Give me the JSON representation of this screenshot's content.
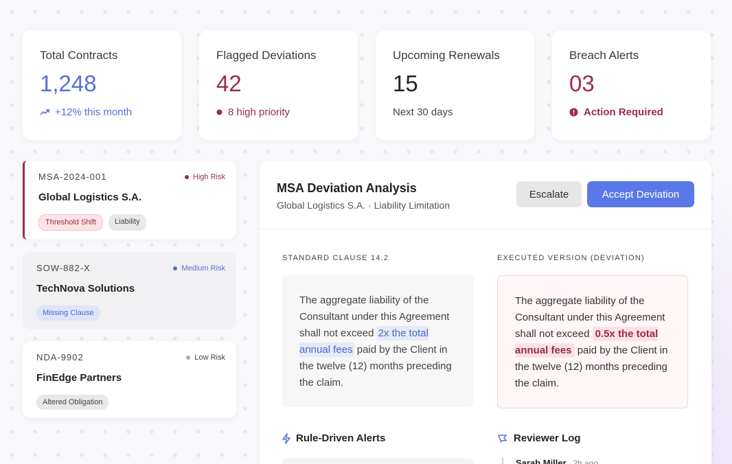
{
  "stats": [
    {
      "label": "Total Contracts",
      "value": "1,248",
      "note": "+12% this month"
    },
    {
      "label": "Flagged Deviations",
      "value": "42",
      "note": "8 high priority"
    },
    {
      "label": "Upcoming Renewals",
      "value": "15",
      "note": "Next 30 days"
    },
    {
      "label": "Breach Alerts",
      "value": "03",
      "note": "Action Required"
    }
  ],
  "contracts": [
    {
      "id": "MSA-2024-001",
      "risk": "High Risk",
      "name": "Global Logistics S.A.",
      "tags": [
        "Threshold Shift",
        "Liability"
      ]
    },
    {
      "id": "SOW-882-X",
      "risk": "Medium Risk",
      "name": "TechNova Solutions",
      "tags": [
        "Missing Clause"
      ]
    },
    {
      "id": "NDA-9902",
      "risk": "Low Risk",
      "name": "FinEdge Partners",
      "tags": [
        "Altered Obligation"
      ]
    }
  ],
  "detail": {
    "title": "MSA Deviation Analysis",
    "subtitle": "Global Logistics S.A. · Liability Limitation",
    "buttons": [
      "Escalate",
      "Accept Deviation"
    ],
    "standard": {
      "label": "STANDARD CLAUSE 14.2",
      "before": "The aggregate liability of the Consultant under this Agreement shall not exceed ",
      "highlight": "2x the total annual fees",
      "after": " paid by the Client in the twelve (12) months preceding the claim."
    },
    "executed": {
      "label": "EXECUTED VERSION (DEVIATION)",
      "before": "The aggregate liability of the Consultant under this Agreement shall not exceed ",
      "highlight": "0.5x the total annual fees",
      "after": " paid by the Client in the twelve (12) months preceding the claim."
    },
    "alerts_title": "Rule-Driven Alerts",
    "log_title": "Reviewer Log",
    "log_entry": {
      "name": "Sarah Miller",
      "time": "2h ago"
    }
  }
}
